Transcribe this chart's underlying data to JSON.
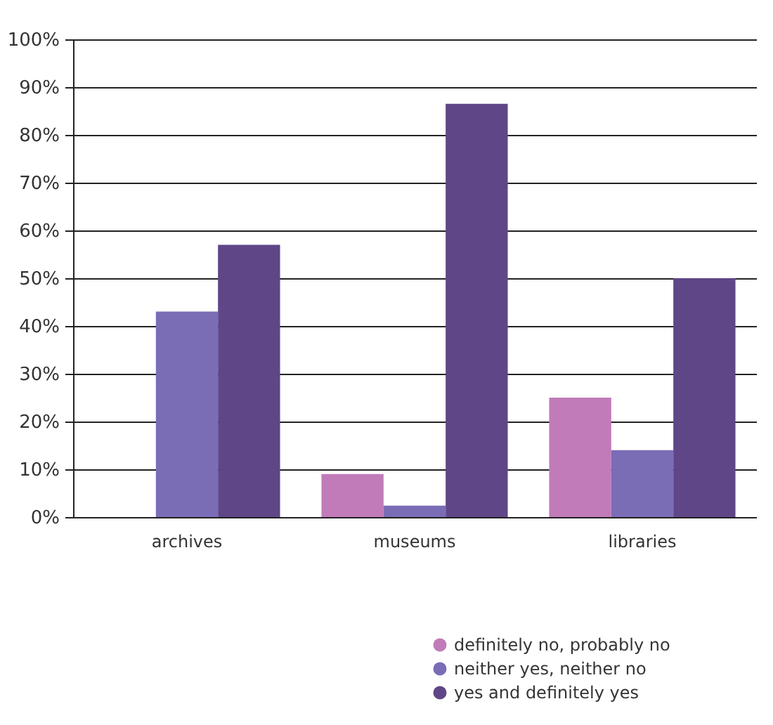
{
  "chart_data": {
    "type": "bar",
    "categories": [
      "archives",
      "museums",
      "libraries"
    ],
    "series": [
      {
        "name": "definitely no, probably no",
        "color": "#c17bb9",
        "values": [
          0,
          9,
          25
        ]
      },
      {
        "name": "neither yes, neither no",
        "color": "#7b6cb6",
        "values": [
          43,
          2.4,
          14
        ]
      },
      {
        "name": "yes and definitely yes",
        "color": "#5f4687",
        "values": [
          57,
          86.5,
          50
        ]
      }
    ],
    "ylim": [
      0,
      100
    ],
    "yticks": [
      {
        "value": 0,
        "label": "0%"
      },
      {
        "value": 10,
        "label": "10%"
      },
      {
        "value": 20,
        "label": "20%"
      },
      {
        "value": 30,
        "label": "30%"
      },
      {
        "value": 40,
        "label": "40%"
      },
      {
        "value": 50,
        "label": "50%"
      },
      {
        "value": 60,
        "label": "60%"
      },
      {
        "value": 70,
        "label": "70%"
      },
      {
        "value": 80,
        "label": "80%"
      },
      {
        "value": 90,
        "label": "90%"
      },
      {
        "value": 100,
        "label": "100%"
      }
    ],
    "grid": "y",
    "legend": "bottom right",
    "marker": "circle"
  }
}
